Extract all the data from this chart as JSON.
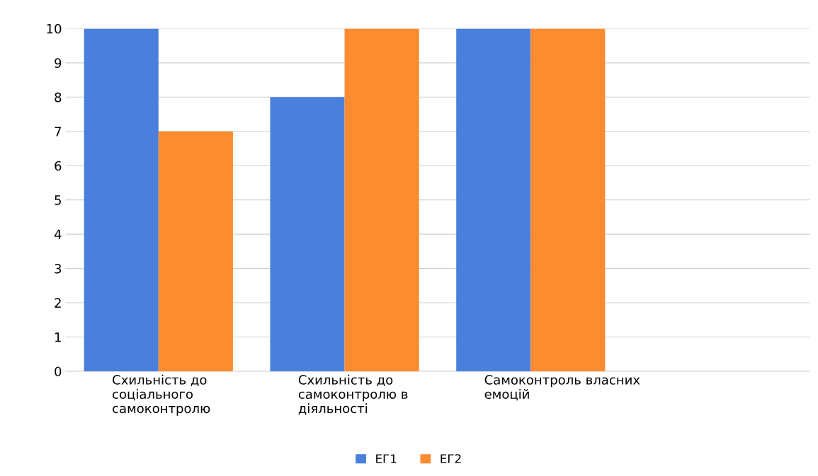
{
  "chart_data": {
    "type": "bar",
    "categories": [
      "Схильність до соціального самоконтролю",
      "Схильність до самоконтролю в діяльності",
      "Самоконтроль власних емоцій",
      null
    ],
    "series": [
      {
        "name": "ЕГ1",
        "color": "#4a7fdb",
        "values": [
          10,
          8,
          10,
          null
        ]
      },
      {
        "name": "ЕГ2",
        "color": "#fd8b30",
        "values": [
          7,
          10,
          10,
          null
        ]
      }
    ],
    "ylim": [
      0,
      10
    ],
    "yticks": [
      0,
      1,
      2,
      3,
      4,
      5,
      6,
      7,
      8,
      9,
      10
    ],
    "grid": "y",
    "legend": "bottom"
  }
}
